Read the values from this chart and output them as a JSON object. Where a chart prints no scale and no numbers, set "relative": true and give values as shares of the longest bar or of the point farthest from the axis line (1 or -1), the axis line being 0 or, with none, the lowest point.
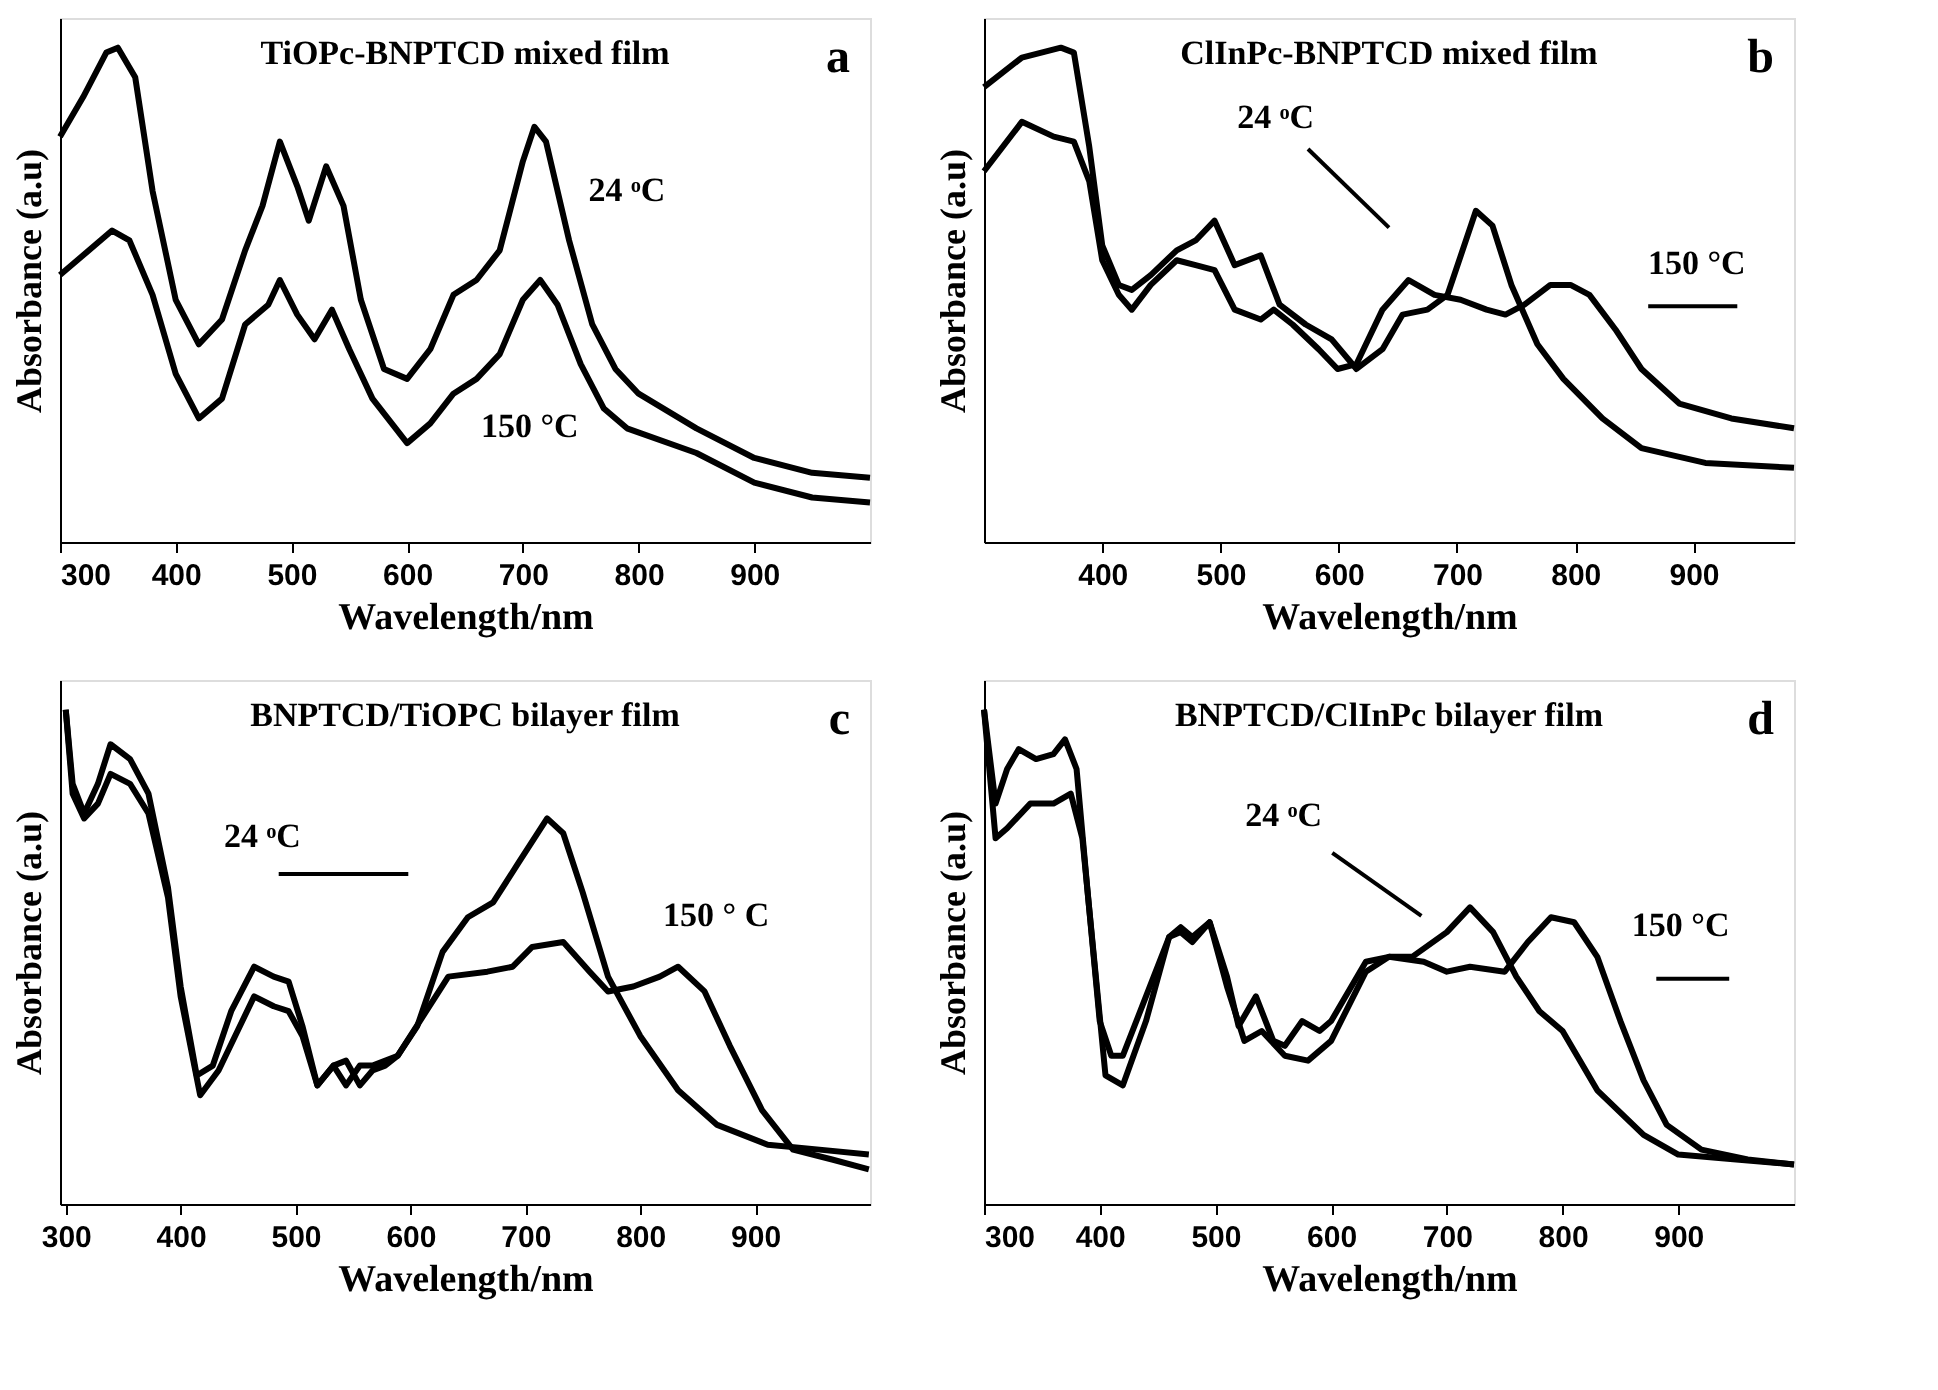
{
  "chart_data": [
    {
      "type": "line",
      "title": "TiOPc-BNPTCD mixed film",
      "xlabel": "Wavelength/nm",
      "ylabel": "Absorbance (a.u)",
      "relative": true,
      "tick_labels": "x",
      "grid": false,
      "marker": "none",
      "line_style": "solid",
      "xlim": [
        300,
        1000
      ],
      "xticks": [
        300,
        400,
        500,
        600,
        700,
        800,
        900
      ],
      "series": [
        {
          "color": "#000000",
          "x": [
            300,
            320,
            340,
            350,
            365,
            380,
            400,
            420,
            440,
            460,
            475,
            490,
            505,
            515,
            530,
            545,
            560,
            580,
            600,
            620,
            640,
            660,
            680,
            700,
            710,
            720,
            740,
            760,
            780,
            800,
            850,
            900,
            950,
            1000
          ],
          "values": [
            0.82,
            0.9,
            0.99,
            1.0,
            0.94,
            0.71,
            0.49,
            0.4,
            0.45,
            0.59,
            0.68,
            0.81,
            0.72,
            0.65,
            0.76,
            0.68,
            0.49,
            0.35,
            0.33,
            0.39,
            0.5,
            0.53,
            0.59,
            0.77,
            0.84,
            0.81,
            0.61,
            0.44,
            0.35,
            0.3,
            0.23,
            0.17,
            0.14,
            0.13
          ]
        },
        {
          "color": "#000000",
          "x": [
            300,
            320,
            345,
            360,
            380,
            400,
            420,
            440,
            460,
            480,
            490,
            505,
            520,
            535,
            550,
            570,
            600,
            620,
            640,
            660,
            680,
            700,
            715,
            730,
            750,
            770,
            790,
            850,
            900,
            950,
            1000
          ],
          "values": [
            0.54,
            0.58,
            0.63,
            0.61,
            0.5,
            0.34,
            0.25,
            0.29,
            0.44,
            0.48,
            0.53,
            0.46,
            0.41,
            0.47,
            0.39,
            0.29,
            0.2,
            0.24,
            0.3,
            0.33,
            0.38,
            0.49,
            0.53,
            0.48,
            0.36,
            0.27,
            0.23,
            0.18,
            0.12,
            0.09,
            0.08
          ]
        }
      ],
      "annotations": [
        "24 ᵒC",
        "150 °C",
        "a"
      ]
    },
    {
      "type": "line",
      "title": "ClInPc-BNPTCD mixed film",
      "xlabel": "Wavelength/nm",
      "ylabel": "Absorbance (a.u)",
      "relative": true,
      "tick_labels": "x",
      "grid": false,
      "marker": "none",
      "line_style": "solid",
      "xlim": [
        300,
        985
      ],
      "xticks": [
        400,
        500,
        600,
        700,
        800,
        900
      ],
      "series": [
        {
          "color": "#000000",
          "x": [
            300,
            332,
            365,
            376,
            389,
            400,
            414,
            425,
            441,
            463,
            479,
            495,
            512,
            534,
            550,
            572,
            594,
            615,
            637,
            654,
            675,
            692,
            716,
            730,
            746,
            768,
            790,
            823,
            856,
            910,
            985
          ],
          "values": [
            0.92,
            0.98,
            1.0,
            0.99,
            0.8,
            0.6,
            0.52,
            0.51,
            0.54,
            0.59,
            0.61,
            0.65,
            0.56,
            0.58,
            0.48,
            0.44,
            0.41,
            0.35,
            0.39,
            0.46,
            0.47,
            0.5,
            0.67,
            0.64,
            0.52,
            0.4,
            0.33,
            0.25,
            0.19,
            0.16,
            0.15
          ]
        },
        {
          "color": "#000000",
          "x": [
            300,
            332,
            359,
            376,
            389,
            400,
            414,
            425,
            441,
            463,
            479,
            495,
            512,
            534,
            545,
            561,
            583,
            599,
            615,
            637,
            659,
            681,
            703,
            725,
            741,
            757,
            779,
            796,
            812,
            834,
            856,
            888,
            932,
            985
          ],
          "values": [
            0.75,
            0.85,
            0.82,
            0.81,
            0.73,
            0.57,
            0.5,
            0.47,
            0.52,
            0.57,
            0.56,
            0.55,
            0.47,
            0.45,
            0.47,
            0.44,
            0.39,
            0.35,
            0.36,
            0.47,
            0.53,
            0.5,
            0.49,
            0.47,
            0.46,
            0.48,
            0.52,
            0.52,
            0.5,
            0.43,
            0.35,
            0.28,
            0.25,
            0.23
          ]
        }
      ],
      "annotations": [
        "24 ᵒC",
        "150 °C",
        "b"
      ]
    },
    {
      "type": "line",
      "title": "BNPTCD/TiOPC bilayer film",
      "xlabel": "Wavelength/nm",
      "ylabel": "Absorbance (a.u)",
      "relative": true,
      "tick_labels": "x",
      "grid": false,
      "marker": "none",
      "line_style": "solid",
      "xlim": [
        295,
        1000
      ],
      "xticks": [
        300,
        400,
        500,
        600,
        700,
        800,
        900
      ],
      "series": [
        {
          "color": "#000000",
          "x": [
            300,
            306,
            316,
            328,
            339,
            356,
            372,
            389,
            400,
            414,
            428,
            444,
            464,
            481,
            494,
            506,
            519,
            533,
            544,
            556,
            567,
            578,
            589,
            606,
            628,
            650,
            672,
            694,
            719,
            733,
            750,
            772,
            800,
            833,
            867,
            911,
            956,
            999
          ],
          "values": [
            1.0,
            0.85,
            0.79,
            0.85,
            0.93,
            0.9,
            0.83,
            0.64,
            0.44,
            0.26,
            0.28,
            0.39,
            0.48,
            0.46,
            0.45,
            0.36,
            0.24,
            0.28,
            0.29,
            0.24,
            0.27,
            0.28,
            0.3,
            0.36,
            0.51,
            0.58,
            0.61,
            0.69,
            0.78,
            0.75,
            0.63,
            0.46,
            0.34,
            0.23,
            0.16,
            0.12,
            0.11,
            0.1
          ]
        },
        {
          "color": "#000000",
          "x": [
            300,
            306,
            316,
            328,
            339,
            356,
            372,
            389,
            400,
            417,
            433,
            464,
            481,
            494,
            506,
            519,
            533,
            544,
            556,
            567,
            589,
            611,
            633,
            667,
            689,
            706,
            733,
            756,
            772,
            794,
            817,
            833,
            856,
            878,
            906,
            933,
            967,
            999
          ],
          "values": [
            1.0,
            0.83,
            0.78,
            0.81,
            0.87,
            0.85,
            0.79,
            0.62,
            0.42,
            0.22,
            0.27,
            0.42,
            0.4,
            0.39,
            0.34,
            0.24,
            0.28,
            0.24,
            0.28,
            0.28,
            0.3,
            0.38,
            0.46,
            0.47,
            0.48,
            0.52,
            0.53,
            0.47,
            0.43,
            0.44,
            0.46,
            0.48,
            0.43,
            0.32,
            0.19,
            0.11,
            0.09,
            0.07
          ]
        }
      ],
      "annotations": [
        "24 ᵒC",
        "150 ° C",
        "c"
      ]
    },
    {
      "type": "line",
      "title": "BNPTCD/ClInPc bilayer film",
      "xlabel": "Wavelength/nm",
      "ylabel": "Absorbance (a.u)",
      "relative": true,
      "tick_labels": "x",
      "grid": false,
      "marker": "none",
      "line_style": "solid",
      "xlim": [
        300,
        1000
      ],
      "xticks": [
        300,
        400,
        500,
        600,
        700,
        800,
        900
      ],
      "series": [
        {
          "color": "#000000",
          "x": [
            300,
            310,
            320,
            330,
            345,
            360,
            370,
            380,
            390,
            400,
            410,
            420,
            440,
            460,
            470,
            480,
            495,
            510,
            520,
            535,
            550,
            560,
            575,
            590,
            600,
            630,
            650,
            670,
            700,
            720,
            740,
            760,
            780,
            800,
            830,
            870,
            900,
            950,
            1000
          ],
          "values": [
            1.0,
            0.81,
            0.88,
            0.92,
            0.9,
            0.91,
            0.94,
            0.88,
            0.62,
            0.37,
            0.3,
            0.3,
            0.42,
            0.54,
            0.56,
            0.54,
            0.57,
            0.46,
            0.36,
            0.42,
            0.33,
            0.32,
            0.37,
            0.35,
            0.37,
            0.49,
            0.5,
            0.5,
            0.55,
            0.6,
            0.55,
            0.46,
            0.39,
            0.35,
            0.23,
            0.14,
            0.1,
            0.09,
            0.08
          ]
        },
        {
          "color": "#000000",
          "x": [
            300,
            310,
            320,
            340,
            360,
            375,
            385,
            395,
            405,
            420,
            440,
            460,
            470,
            480,
            495,
            510,
            525,
            540,
            560,
            580,
            600,
            630,
            650,
            680,
            700,
            720,
            750,
            770,
            790,
            810,
            830,
            850,
            870,
            890,
            920,
            960,
            1000
          ],
          "values": [
            1.0,
            0.74,
            0.76,
            0.81,
            0.81,
            0.83,
            0.74,
            0.5,
            0.26,
            0.24,
            0.37,
            0.54,
            0.55,
            0.53,
            0.57,
            0.44,
            0.33,
            0.35,
            0.3,
            0.29,
            0.33,
            0.47,
            0.5,
            0.49,
            0.47,
            0.48,
            0.47,
            0.53,
            0.58,
            0.57,
            0.5,
            0.37,
            0.25,
            0.16,
            0.11,
            0.09,
            0.08
          ]
        }
      ],
      "annotations": [
        "24 ᵒC",
        "150 °C",
        "d"
      ]
    }
  ]
}
